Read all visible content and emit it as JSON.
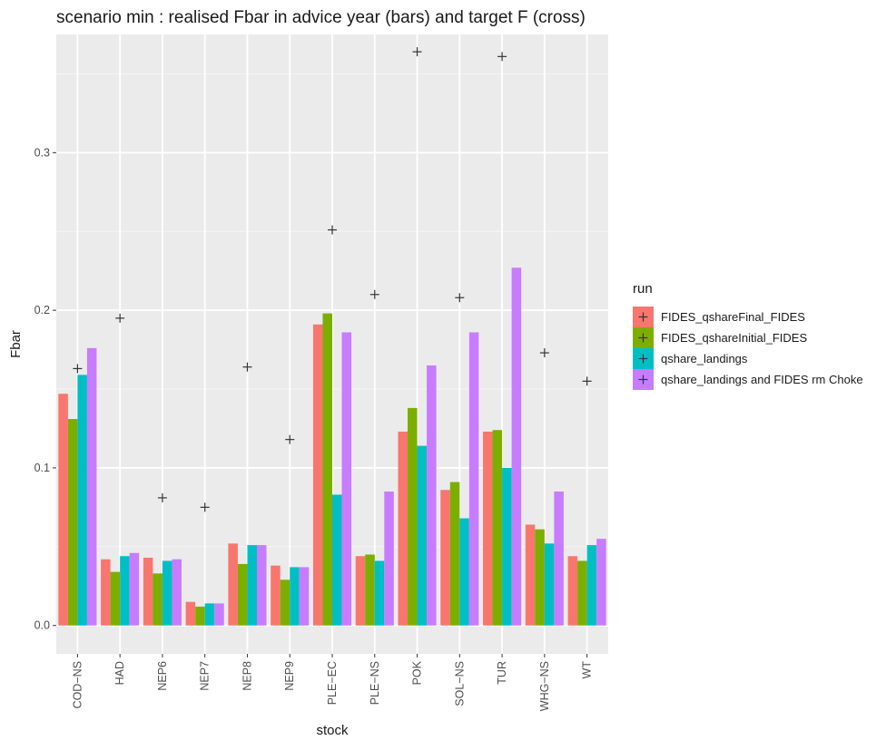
{
  "chart_data": {
    "type": "bar",
    "title": "scenario min : realised Fbar in advice year (bars) and target F (cross)",
    "xlabel": "stock",
    "ylabel": "Fbar",
    "ylim": [
      -0.018,
      0.375
    ],
    "yticks": [
      0.0,
      0.1,
      0.2,
      0.3
    ],
    "ytick_labels": [
      "0.0",
      "0.1",
      "0.2",
      "0.3"
    ],
    "grid": true,
    "legend_position": "right",
    "legend_title": "run",
    "categories": [
      "COD−NS",
      "HAD",
      "NEP6",
      "NEP7",
      "NEP8",
      "NEP9",
      "PLE−EC",
      "PLE−NS",
      "POK",
      "SOL−NS",
      "TUR",
      "WHG−NS",
      "WT"
    ],
    "series": [
      {
        "name": "FIDES_qshareFinal_FIDES",
        "color": "#F8766D",
        "values": [
          0.147,
          0.042,
          0.043,
          0.015,
          0.052,
          0.038,
          0.191,
          0.044,
          0.123,
          0.086,
          0.123,
          0.064,
          0.044
        ]
      },
      {
        "name": "FIDES_qshareInitial_FIDES",
        "color": "#7CAE00",
        "values": [
          0.131,
          0.034,
          0.033,
          0.012,
          0.039,
          0.029,
          0.198,
          0.045,
          0.138,
          0.091,
          0.124,
          0.061,
          0.041
        ]
      },
      {
        "name": "qshare_landings",
        "color": "#00BFC4",
        "values": [
          0.159,
          0.044,
          0.041,
          0.014,
          0.051,
          0.037,
          0.083,
          0.041,
          0.114,
          0.068,
          0.1,
          0.052,
          0.051
        ]
      },
      {
        "name": "qshare_landings and FIDES rm Choke",
        "color": "#C77CFF",
        "values": [
          0.176,
          0.046,
          0.042,
          0.014,
          0.051,
          0.037,
          0.186,
          0.085,
          0.165,
          0.186,
          0.227,
          0.085,
          0.055
        ]
      }
    ],
    "target_f": [
      0.163,
      0.195,
      0.081,
      0.075,
      0.164,
      0.118,
      0.251,
      0.21,
      0.364,
      0.208,
      0.361,
      0.173,
      0.155
    ]
  }
}
